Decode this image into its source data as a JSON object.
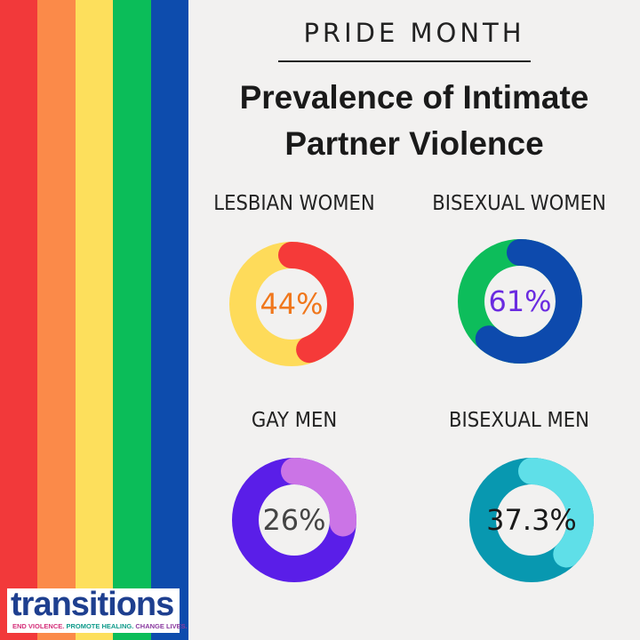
{
  "header": {
    "eyebrow": "PRIDE MONTH",
    "title_line1": "Prevalence of Intimate",
    "title_line2": "Partner Violence"
  },
  "stripe_colors": [
    "#f2393a",
    "#fb8a49",
    "#fddf5c",
    "#0bbd59",
    "#0d4cad"
  ],
  "chart_data": [
    {
      "type": "pie",
      "label": "LESBIAN WOMEN",
      "value": 44,
      "display": "44%",
      "colors": {
        "value": "#f53a39",
        "rest": "#fedb5a",
        "text": "#f0771c"
      }
    },
    {
      "type": "pie",
      "label": "BISEXUAL WOMEN",
      "value": 61,
      "display": "61%",
      "colors": {
        "value": "#0d4aad",
        "rest": "#0dbd5b",
        "text": "#6a2be0"
      }
    },
    {
      "type": "pie",
      "label": "GAY MEN",
      "value": 26,
      "display": "26%",
      "colors": {
        "value": "#cb74e6",
        "rest": "#5a1ee8",
        "text": "#444444"
      }
    },
    {
      "type": "pie",
      "label": "BISEXUAL MEN",
      "value": 37.3,
      "display": "37.3%",
      "colors": {
        "value": "#5fdfe8",
        "rest": "#0898b0",
        "text": "#1a1a1a"
      }
    }
  ],
  "logo": {
    "word_parts": [
      "tran",
      "sitions"
    ],
    "tag_parts": [
      "END VIOLENCE. ",
      "PROMOTE HEALING. ",
      "CHANGE LIVES."
    ],
    "colors": [
      "#1e3f8f",
      "#8a3aa0",
      "#0e9a8a",
      "#d4307a",
      "#2a6bc0"
    ]
  }
}
